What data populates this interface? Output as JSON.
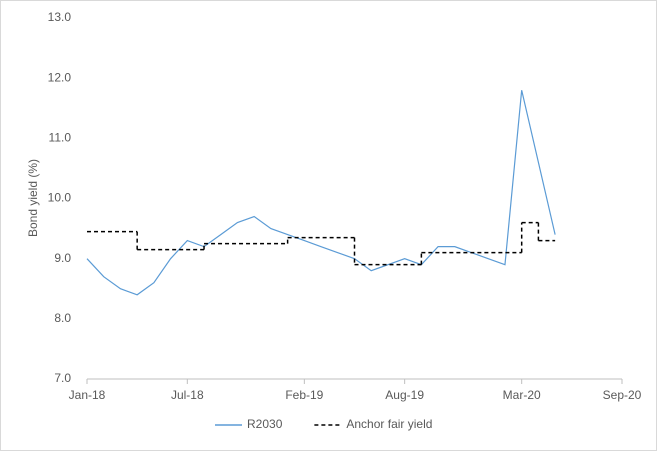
{
  "chart_data": {
    "type": "line",
    "ylabel": "Bond yield (%)",
    "xlim": [
      "2018-01",
      "2020-09"
    ],
    "xticks": [
      {
        "value": "2018-01",
        "label": "Jan-18"
      },
      {
        "value": "2018-07",
        "label": "Jul-18"
      },
      {
        "value": "2019-02",
        "label": "Feb-19"
      },
      {
        "value": "2019-08",
        "label": "Aug-19"
      },
      {
        "value": "2020-03",
        "label": "Mar-20"
      },
      {
        "value": "2020-09",
        "label": "Sep-20"
      }
    ],
    "ylim": [
      7,
      13
    ],
    "yticks": [
      {
        "value": 7,
        "label": "7.0"
      },
      {
        "value": 8,
        "label": "8.0"
      },
      {
        "value": 9,
        "label": "9.0"
      },
      {
        "value": 10,
        "label": "10.0"
      },
      {
        "value": 11,
        "label": "11.0"
      },
      {
        "value": 12,
        "label": "12.0"
      },
      {
        "value": 13,
        "label": "13.0"
      }
    ],
    "grid": false,
    "legend": "bottom",
    "series": [
      {
        "name": "R2030",
        "color": "#5b9bd5",
        "style": "solid",
        "x": [
          "2018-01",
          "2018-02",
          "2018-03",
          "2018-04",
          "2018-05",
          "2018-06",
          "2018-07",
          "2018-08",
          "2018-09",
          "2018-10",
          "2018-11",
          "2018-12",
          "2019-01",
          "2019-02",
          "2019-03",
          "2019-04",
          "2019-05",
          "2019-06",
          "2019-07",
          "2019-08",
          "2019-09",
          "2019-10",
          "2019-11",
          "2019-12",
          "2020-01",
          "2020-02",
          "2020-03",
          "2020-04",
          "2020-05"
        ],
        "values": [
          9.0,
          8.7,
          8.5,
          8.4,
          8.6,
          9.0,
          9.3,
          9.2,
          9.4,
          9.6,
          9.7,
          9.5,
          9.4,
          9.3,
          9.2,
          9.1,
          9.0,
          8.8,
          8.9,
          9.0,
          8.9,
          9.2,
          9.2,
          9.1,
          9.0,
          8.9,
          11.8,
          10.6,
          9.4
        ]
      },
      {
        "name": "Anchor fair yield",
        "color": "#000000",
        "style": "dashed",
        "step": true,
        "x": [
          "2018-01",
          "2018-04",
          "2018-08",
          "2019-01",
          "2019-05",
          "2019-09",
          "2020-03",
          "2020-04"
        ],
        "values": [
          9.45,
          9.15,
          9.25,
          9.35,
          8.9,
          9.1,
          9.6,
          9.3
        ]
      }
    ]
  }
}
